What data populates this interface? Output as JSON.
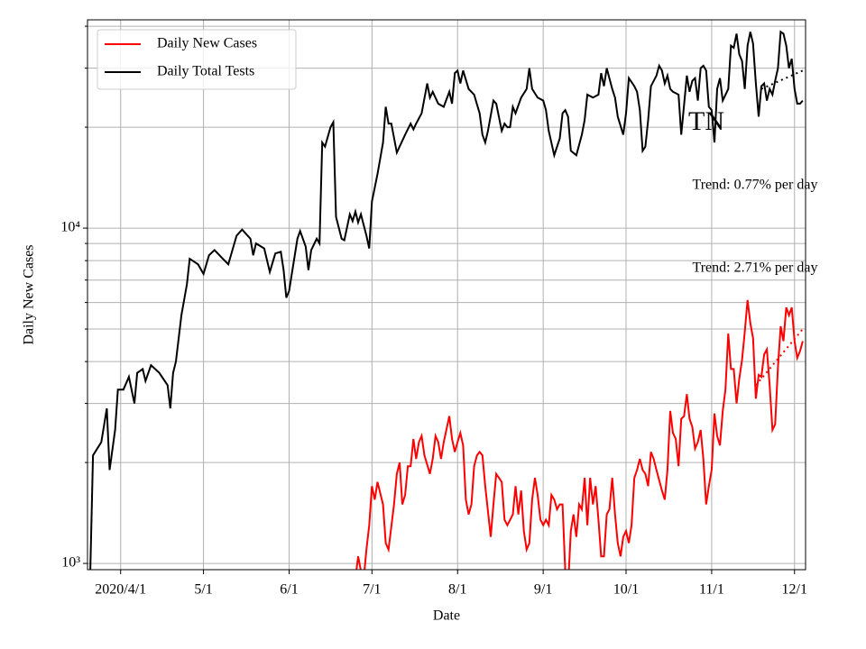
{
  "chart_data": {
    "type": "line",
    "xlabel": "Date",
    "ylabel": "Daily New Cases",
    "log_y": true,
    "grid": true,
    "legend": "upper left",
    "xlim": [
      "2020-03-20",
      "2020-12-05"
    ],
    "xticks": [
      {
        "value": "2020-04-01",
        "label": "2020/4/1"
      },
      {
        "value": "2020-05-01",
        "label": "5/1"
      },
      {
        "value": "2020-06-01",
        "label": "6/1"
      },
      {
        "value": "2020-07-01",
        "label": "7/1"
      },
      {
        "value": "2020-08-01",
        "label": "8/1"
      },
      {
        "value": "2020-09-01",
        "label": "9/1"
      },
      {
        "value": "2020-10-01",
        "label": "10/1"
      },
      {
        "value": "2020-11-01",
        "label": "11/1"
      },
      {
        "value": "2020-12-01",
        "label": "12/1"
      }
    ],
    "ylim": [
      958,
      41800
    ],
    "yticks": [
      {
        "value": 1000,
        "label": "10³"
      },
      {
        "value": 10000,
        "label": "10⁴"
      }
    ],
    "yminor": [
      2000,
      3000,
      4000,
      5000,
      6000,
      7000,
      8000,
      9000,
      20000,
      30000,
      40000
    ],
    "annotations": [
      "TN",
      "Trend: 0.77% per day",
      "Trend: 2.71% per day"
    ],
    "series": [
      {
        "name": "Daily New Cases",
        "color": "#ff0000",
        "x": [
          "2020-06-25",
          "2020-06-26",
          "2020-06-27",
          "2020-06-28",
          "2020-06-29",
          "2020-06-30",
          "2020-07-01",
          "2020-07-02",
          "2020-07-03",
          "2020-07-05",
          "2020-07-06",
          "2020-07-07",
          "2020-07-09",
          "2020-07-10",
          "2020-07-11",
          "2020-07-12",
          "2020-07-13",
          "2020-07-14",
          "2020-07-15",
          "2020-07-16",
          "2020-07-17",
          "2020-07-18",
          "2020-07-19",
          "2020-07-20",
          "2020-07-22",
          "2020-07-23",
          "2020-07-24",
          "2020-07-25",
          "2020-07-26",
          "2020-07-27",
          "2020-07-29",
          "2020-07-30",
          "2020-07-31",
          "2020-08-01",
          "2020-08-02",
          "2020-08-03",
          "2020-08-04",
          "2020-08-05",
          "2020-08-06",
          "2020-08-07",
          "2020-08-08",
          "2020-08-09",
          "2020-08-10",
          "2020-08-11",
          "2020-08-13",
          "2020-08-14",
          "2020-08-15",
          "2020-08-17",
          "2020-08-18",
          "2020-08-19",
          "2020-08-21",
          "2020-08-22",
          "2020-08-23",
          "2020-08-24",
          "2020-08-25",
          "2020-08-26",
          "2020-08-27",
          "2020-08-28",
          "2020-08-29",
          "2020-08-30",
          "2020-08-31",
          "2020-09-01",
          "2020-09-02",
          "2020-09-03",
          "2020-09-04",
          "2020-09-05",
          "2020-09-06",
          "2020-09-07",
          "2020-09-08",
          "2020-09-09",
          "2020-09-10",
          "2020-09-11",
          "2020-09-12",
          "2020-09-13",
          "2020-09-14",
          "2020-09-15",
          "2020-09-16",
          "2020-09-17",
          "2020-09-18",
          "2020-09-19",
          "2020-09-20",
          "2020-09-21",
          "2020-09-22",
          "2020-09-23",
          "2020-09-24",
          "2020-09-25",
          "2020-09-26",
          "2020-09-27",
          "2020-09-28",
          "2020-09-29",
          "2020-09-30",
          "2020-10-01",
          "2020-10-02",
          "2020-10-03",
          "2020-10-04",
          "2020-10-05",
          "2020-10-06",
          "2020-10-07",
          "2020-10-08",
          "2020-10-09",
          "2020-10-10",
          "2020-10-11",
          "2020-10-12",
          "2020-10-14",
          "2020-10-15",
          "2020-10-16",
          "2020-10-17",
          "2020-10-18",
          "2020-10-19",
          "2020-10-20",
          "2020-10-21",
          "2020-10-22",
          "2020-10-23",
          "2020-10-24",
          "2020-10-25",
          "2020-10-26",
          "2020-10-27",
          "2020-10-28",
          "2020-10-29",
          "2020-10-30",
          "2020-10-31",
          "2020-11-01",
          "2020-11-02",
          "2020-11-03",
          "2020-11-04",
          "2020-11-05",
          "2020-11-06",
          "2020-11-07",
          "2020-11-08",
          "2020-11-09",
          "2020-11-10",
          "2020-11-11",
          "2020-11-12",
          "2020-11-13",
          "2020-11-14",
          "2020-11-15",
          "2020-11-16",
          "2020-11-17",
          "2020-11-18",
          "2020-11-19",
          "2020-11-20",
          "2020-11-21",
          "2020-11-22",
          "2020-11-23",
          "2020-11-24",
          "2020-11-25",
          "2020-11-26",
          "2020-11-27",
          "2020-11-28",
          "2020-11-29",
          "2020-11-30",
          "2020-12-01",
          "2020-12-02",
          "2020-12-03",
          "2020-12-04"
        ],
        "values": [
          900,
          1050,
          950,
          900,
          1100,
          1300,
          1700,
          1550,
          1750,
          1500,
          1150,
          1100,
          1500,
          1850,
          2000,
          1500,
          1600,
          1950,
          1950,
          2350,
          2050,
          2300,
          2400,
          2100,
          1850,
          2050,
          2400,
          2300,
          2050,
          2300,
          2750,
          2350,
          2150,
          2300,
          2450,
          2250,
          1550,
          1400,
          1500,
          1950,
          2100,
          2150,
          2100,
          1700,
          1200,
          1500,
          1850,
          1750,
          1350,
          1300,
          1400,
          1700,
          1400,
          1650,
          1250,
          1100,
          1150,
          1550,
          1800,
          1600,
          1350,
          1300,
          1350,
          1300,
          1600,
          1550,
          1450,
          1500,
          1500,
          950,
          850,
          1250,
          1400,
          1200,
          1500,
          1450,
          1800,
          1300,
          1800,
          1500,
          1700,
          1350,
          1050,
          1050,
          1400,
          1450,
          1800,
          1400,
          1150,
          1050,
          1200,
          1250,
          1150,
          1300,
          1800,
          1900,
          2050,
          1900,
          1850,
          1700,
          2150,
          2050,
          1900,
          1650,
          1550,
          1900,
          2850,
          2450,
          2350,
          1950,
          2700,
          2750,
          3200,
          2700,
          2550,
          2200,
          2300,
          2500,
          2050,
          1500,
          1700,
          1900,
          2800,
          2400,
          2250,
          2850,
          3300,
          4850,
          3800,
          3800,
          3000,
          3550,
          4050,
          4900,
          6100,
          5200,
          4700,
          3100,
          3650,
          3600,
          4200,
          4350,
          3400,
          2500,
          2600,
          3850,
          5100,
          4600,
          5800,
          5500,
          5800,
          4600,
          4100,
          4300,
          4600
        ]
      },
      {
        "name": "Daily Total Tests",
        "color": "#000000",
        "x": [
          "2020-03-21",
          "2020-03-22",
          "2020-03-25",
          "2020-03-27",
          "2020-03-28",
          "2020-03-30",
          "2020-03-31",
          "2020-04-02",
          "2020-04-04",
          "2020-04-06",
          "2020-04-07",
          "2020-04-09",
          "2020-04-10",
          "2020-04-12",
          "2020-04-15",
          "2020-04-18",
          "2020-04-19",
          "2020-04-20",
          "2020-04-21",
          "2020-04-23",
          "2020-04-25",
          "2020-04-26",
          "2020-04-29",
          "2020-05-01",
          "2020-05-03",
          "2020-05-05",
          "2020-05-08",
          "2020-05-10",
          "2020-05-13",
          "2020-05-15",
          "2020-05-18",
          "2020-05-19",
          "2020-05-20",
          "2020-05-23",
          "2020-05-25",
          "2020-05-27",
          "2020-05-29",
          "2020-05-30",
          "2020-05-31",
          "2020-06-01",
          "2020-06-04",
          "2020-06-05",
          "2020-06-07",
          "2020-06-08",
          "2020-06-09",
          "2020-06-11",
          "2020-06-12",
          "2020-06-13",
          "2020-06-14",
          "2020-06-16",
          "2020-06-17",
          "2020-06-18",
          "2020-06-20",
          "2020-06-21",
          "2020-06-23",
          "2020-06-24",
          "2020-06-25",
          "2020-06-26",
          "2020-06-27",
          "2020-06-29",
          "2020-06-30",
          "2020-07-01",
          "2020-07-03",
          "2020-07-05",
          "2020-07-06",
          "2020-07-07",
          "2020-07-08",
          "2020-07-10",
          "2020-07-13",
          "2020-07-15",
          "2020-07-16",
          "2020-07-17",
          "2020-07-19",
          "2020-07-21",
          "2020-07-22",
          "2020-07-23",
          "2020-07-25",
          "2020-07-27",
          "2020-07-29",
          "2020-07-30",
          "2020-07-31",
          "2020-08-01",
          "2020-08-02",
          "2020-08-03",
          "2020-08-05",
          "2020-08-07",
          "2020-08-09",
          "2020-08-10",
          "2020-08-11",
          "2020-08-12",
          "2020-08-14",
          "2020-08-15",
          "2020-08-17",
          "2020-08-18",
          "2020-08-19",
          "2020-08-20",
          "2020-08-21",
          "2020-08-22",
          "2020-08-24",
          "2020-08-26",
          "2020-08-27",
          "2020-08-28",
          "2020-08-30",
          "2020-09-01",
          "2020-09-02",
          "2020-09-03",
          "2020-09-05",
          "2020-09-07",
          "2020-09-08",
          "2020-09-09",
          "2020-09-10",
          "2020-09-11",
          "2020-09-13",
          "2020-09-15",
          "2020-09-16",
          "2020-09-17",
          "2020-09-19",
          "2020-09-21",
          "2020-09-22",
          "2020-09-23",
          "2020-09-24",
          "2020-09-26",
          "2020-09-27",
          "2020-09-28",
          "2020-09-30",
          "2020-10-01",
          "2020-10-02",
          "2020-10-04",
          "2020-10-05",
          "2020-10-06",
          "2020-10-07",
          "2020-10-08",
          "2020-10-09",
          "2020-10-10",
          "2020-10-12",
          "2020-10-13",
          "2020-10-14",
          "2020-10-15",
          "2020-10-16",
          "2020-10-17",
          "2020-10-18",
          "2020-10-20",
          "2020-10-21",
          "2020-10-23",
          "2020-10-24",
          "2020-10-25",
          "2020-10-26",
          "2020-10-27",
          "2020-10-28",
          "2020-10-29",
          "2020-10-30",
          "2020-10-31",
          "2020-11-01",
          "2020-11-02",
          "2020-11-03",
          "2020-11-04",
          "2020-11-05",
          "2020-11-07",
          "2020-11-08",
          "2020-11-09",
          "2020-11-10",
          "2020-11-11",
          "2020-11-12",
          "2020-11-13",
          "2020-11-14",
          "2020-11-15",
          "2020-11-16",
          "2020-11-17",
          "2020-11-18",
          "2020-11-19",
          "2020-11-20",
          "2020-11-21",
          "2020-11-22",
          "2020-11-23",
          "2020-11-24",
          "2020-11-25",
          "2020-11-26",
          "2020-11-27",
          "2020-11-28",
          "2020-11-29",
          "2020-11-30",
          "2020-12-01",
          "2020-12-02",
          "2020-12-03",
          "2020-12-04"
        ],
        "values": [
          950,
          2100,
          2300,
          2900,
          1900,
          2500,
          3300,
          3300,
          3600,
          3000,
          3700,
          3800,
          3500,
          3900,
          3700,
          3400,
          2900,
          3700,
          4000,
          5500,
          6800,
          8100,
          7800,
          7300,
          8300,
          8600,
          8100,
          7800,
          9500,
          9900,
          9300,
          8300,
          9000,
          8700,
          7400,
          8400,
          8500,
          7500,
          6200,
          6500,
          9300,
          9800,
          8800,
          7500,
          8600,
          9300,
          9000,
          18000,
          17500,
          20000,
          20700,
          10800,
          9300,
          9200,
          11000,
          10500,
          11200,
          10400,
          11000,
          9500,
          8700,
          12000,
          14500,
          18000,
          23000,
          20500,
          20500,
          16800,
          19000,
          20500,
          19700,
          20500,
          22000,
          27000,
          24500,
          25500,
          23500,
          23000,
          25500,
          23500,
          29000,
          29500,
          27000,
          29500,
          26000,
          25000,
          22000,
          19000,
          18000,
          19500,
          24000,
          23500,
          19500,
          20500,
          20000,
          20000,
          23000,
          22000,
          24500,
          26000,
          30000,
          26000,
          24500,
          24000,
          22500,
          19500,
          16500,
          18500,
          22000,
          22500,
          21500,
          17000,
          16500,
          19000,
          21000,
          25000,
          24500,
          25000,
          29000,
          26500,
          30000,
          26000,
          24500,
          21500,
          19000,
          22000,
          28000,
          26500,
          25500,
          22500,
          17000,
          17500,
          21000,
          26500,
          28500,
          30500,
          29500,
          27000,
          28500,
          26000,
          25500,
          25000,
          19000,
          28500,
          25500,
          27500,
          28000,
          24000,
          30000,
          30500,
          29500,
          23000,
          22500,
          18000,
          26000,
          28000,
          24000,
          26000,
          35000,
          34500,
          38000,
          33000,
          31500,
          26000,
          35000,
          38500,
          35500,
          27000,
          21500,
          26500,
          27000,
          24000,
          26000,
          25000,
          27500,
          30000,
          38500,
          38000,
          35000,
          30000,
          32000,
          26000,
          23500,
          23500,
          24000
        ]
      }
    ],
    "trends": [
      {
        "color": "#000000",
        "linestyle": "dotted",
        "x": [
          "2020-11-19",
          "2020-12-04"
        ],
        "values": [
          26000,
          29500
        ]
      },
      {
        "color": "#ff0000",
        "linestyle": "dotted",
        "x": [
          "2020-11-17",
          "2020-12-04"
        ],
        "values": [
          3400,
          5000
        ]
      }
    ]
  }
}
